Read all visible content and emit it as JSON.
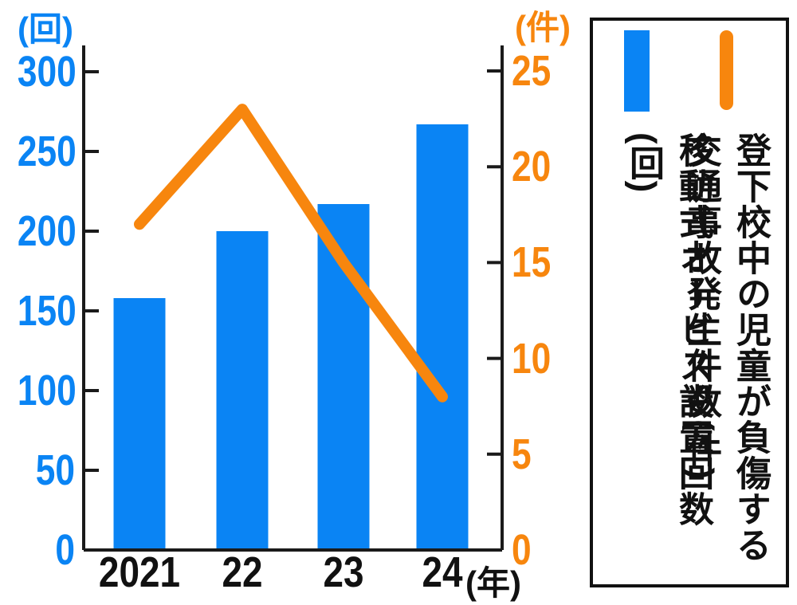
{
  "colors": {
    "bar": "#0a84f4",
    "line": "#f7860e",
    "axis": "#1a1a1a",
    "text": "#111111"
  },
  "chart_data": {
    "type": "bar+line",
    "categories": [
      "2021",
      "22",
      "23",
      "24"
    ],
    "x_axis_unit": "(年)",
    "series": [
      {
        "name": "移動式オービス設置回数",
        "unit": "回",
        "type": "bar",
        "axis": "left",
        "color": "#0a84f4",
        "values": [
          158,
          200,
          217,
          267
        ]
      },
      {
        "name": "登下校中の児童が負傷する交通事故発生件数",
        "unit": "件",
        "type": "line",
        "axis": "right",
        "color": "#f7860e",
        "values": [
          17,
          23,
          15,
          8
        ]
      }
    ],
    "left_axis": {
      "label": "(回)",
      "ticks": [
        0,
        50,
        100,
        150,
        200,
        250,
        300
      ],
      "range": [
        0,
        300
      ],
      "color": "#0a84f4"
    },
    "right_axis": {
      "label": "(件)",
      "ticks": [
        0,
        5,
        10,
        15,
        20,
        25
      ],
      "range": [
        0,
        25
      ],
      "color": "#f7860e"
    },
    "grid": false,
    "legend_position": "right"
  },
  "legend": {
    "bar_label": "移動式オービス設置回数(回)",
    "line_label_line1": "登下校中の児童が負傷する",
    "line_label_line2": "交通事故発生件数(件)"
  }
}
